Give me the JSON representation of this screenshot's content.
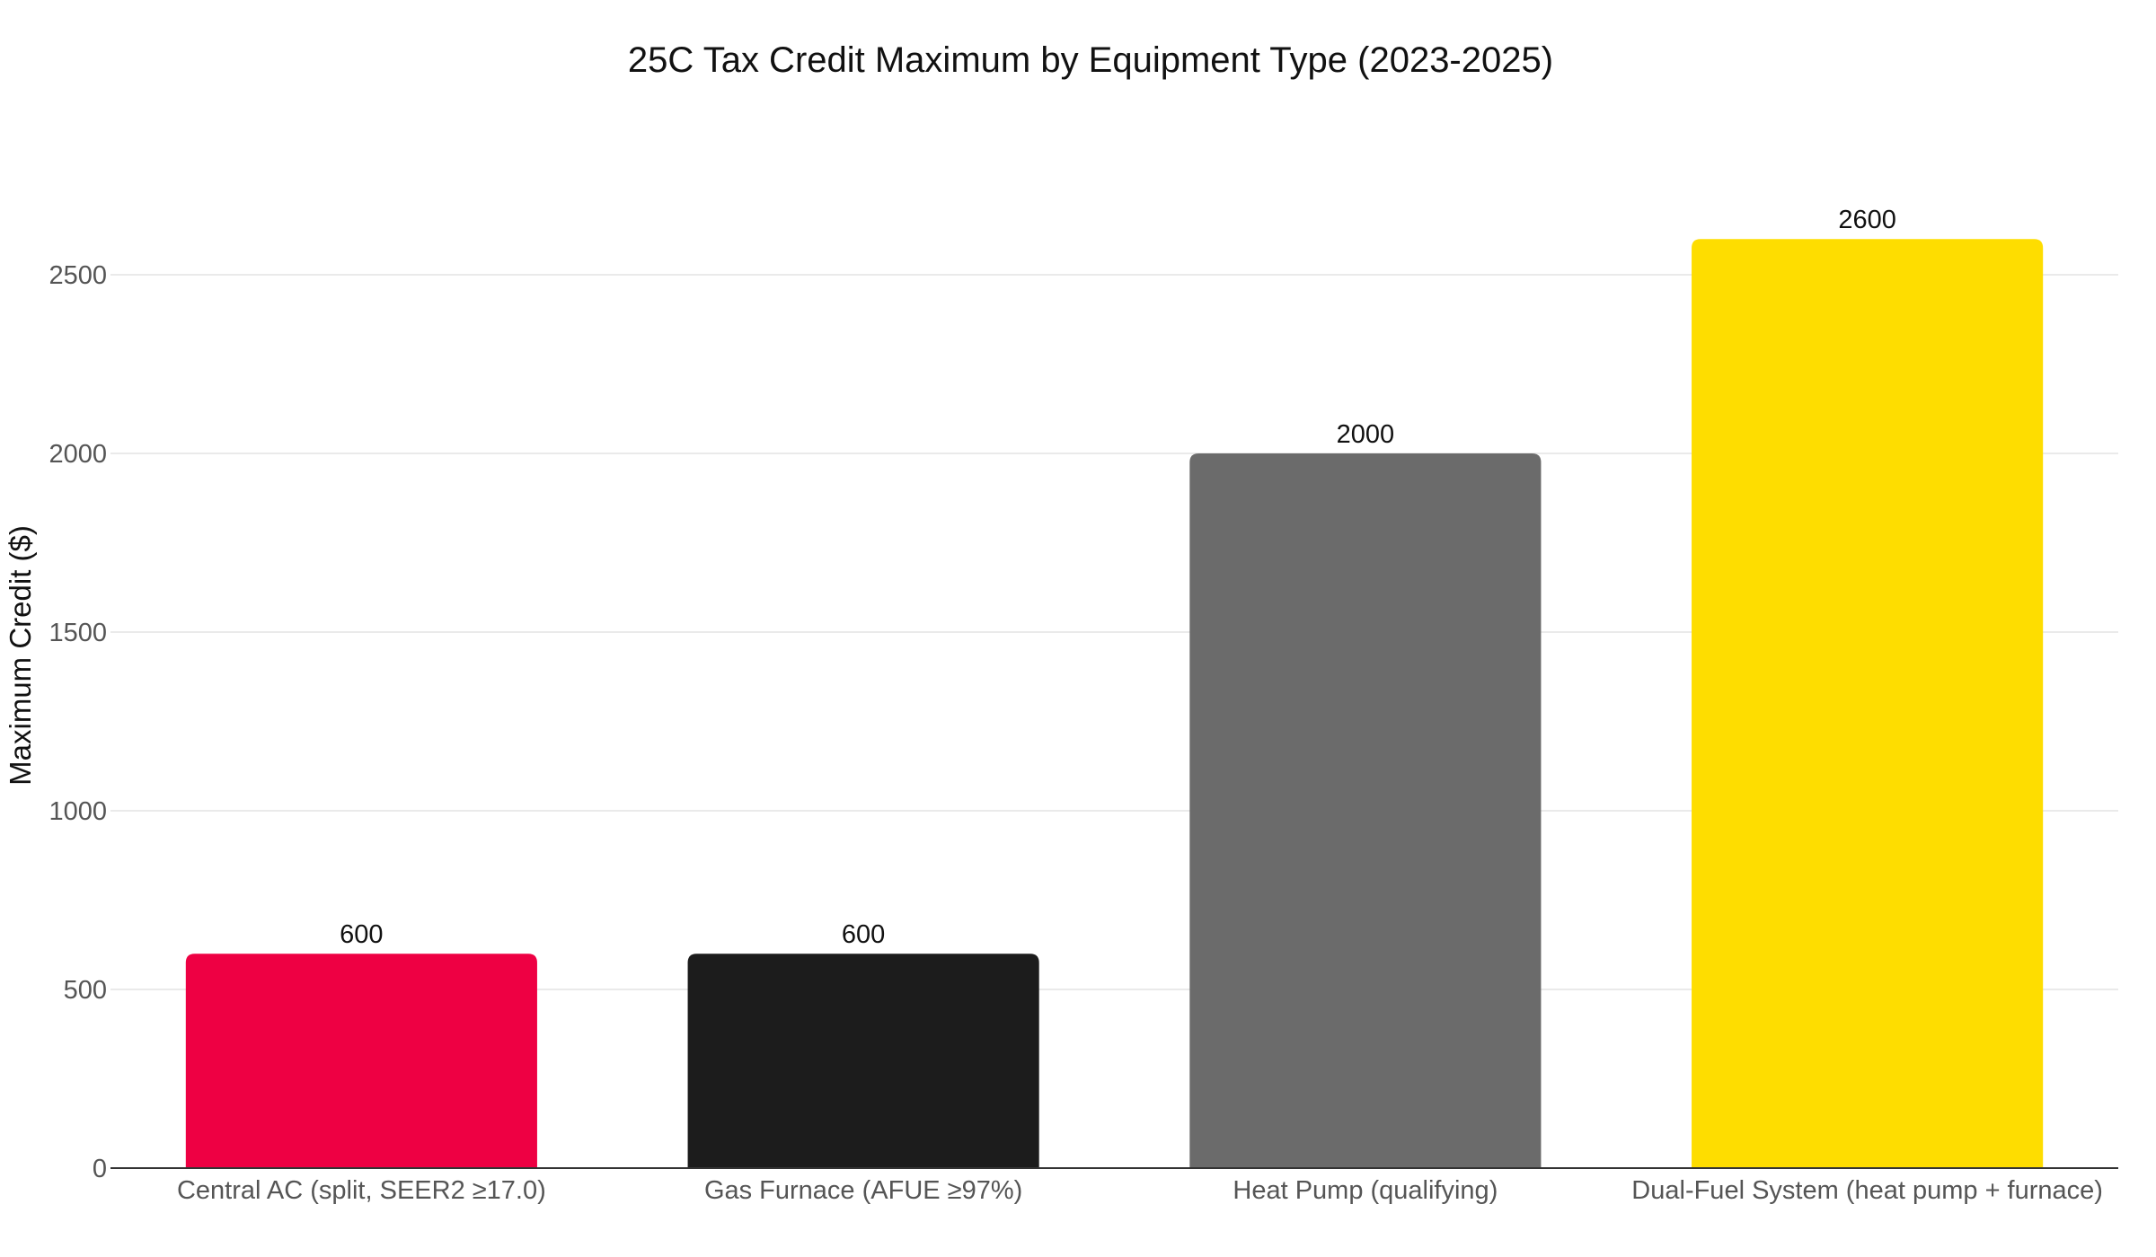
{
  "chart_data": {
    "type": "bar",
    "title": "25C Tax Credit Maximum by Equipment Type (2023-2025)",
    "xlabel": "",
    "ylabel": "Maximum Credit ($)",
    "categories": [
      "Central AC (split, SEER2 ≥17.0)",
      "Gas Furnace (AFUE ≥97%)",
      "Heat Pump (qualifying)",
      "Dual-Fuel System (heat pump + furnace)"
    ],
    "values": [
      600,
      600,
      2000,
      2600
    ],
    "data_labels": [
      "600",
      "600",
      "2000",
      "2600"
    ],
    "colors": [
      "#ee0043",
      "#1c1c1c",
      "#6b6b6b",
      "#fedd00"
    ],
    "ylim": [
      0,
      2800
    ],
    "yticks": [
      0,
      500,
      1000,
      1500,
      2000,
      2500
    ],
    "ytick_labels": [
      "0",
      "500",
      "1000",
      "1500",
      "2000",
      "2500"
    ],
    "grid": true,
    "legend": "none"
  }
}
